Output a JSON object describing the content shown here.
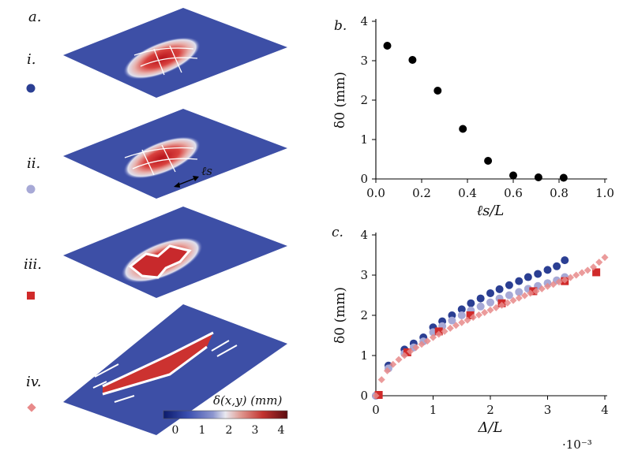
{
  "panels": {
    "a": {
      "label": "a.",
      "rows": [
        {
          "label": "i.",
          "marker": "circle",
          "color": "#2b3f93"
        },
        {
          "label": "ii.",
          "marker": "circle",
          "color": "#a7a9d6"
        },
        {
          "label": "iii.",
          "marker": "square",
          "color": "#d02a2a"
        },
        {
          "label": "iv.",
          "marker": "diamond",
          "color": "#e88a8a"
        }
      ],
      "ls_label": "ℓs",
      "colorbar": {
        "label": "δ(x,y) (mm)",
        "ticks": [
          "0",
          "1",
          "2",
          "3",
          "4"
        ]
      }
    },
    "b": {
      "label": "b."
    },
    "c": {
      "label": "c.",
      "x_exponent": "·10⁻³"
    }
  },
  "chart_data": [
    {
      "id": "b",
      "type": "scatter",
      "xlabel": "ℓs/L",
      "ylabel": "δ0 (mm)",
      "xlim": [
        0,
        1
      ],
      "ylim": [
        0,
        4
      ],
      "xticks": [
        "0.0",
        "0.2",
        "0.4",
        "0.6",
        "0.8",
        "1.0"
      ],
      "yticks": [
        "0",
        "1",
        "2",
        "3",
        "4"
      ],
      "series": [
        {
          "name": "δ0 vs ℓs/L",
          "color": "#000000",
          "x": [
            0.05,
            0.16,
            0.27,
            0.38,
            0.49,
            0.6,
            0.71,
            0.82
          ],
          "y": [
            3.38,
            3.02,
            2.24,
            1.27,
            0.46,
            0.09,
            0.04,
            0.03
          ]
        }
      ]
    },
    {
      "id": "c",
      "type": "scatter",
      "xlabel": "Δ/L",
      "ylabel": "δ0 (mm)",
      "xlim": [
        0,
        4
      ],
      "ylim": [
        0,
        4
      ],
      "xticks": [
        "0",
        "1",
        "2",
        "3",
        "4"
      ],
      "yticks": [
        "0",
        "1",
        "2",
        "3",
        "4"
      ],
      "series": [
        {
          "name": "i",
          "marker": "circle",
          "color": "#2b3f93",
          "x": [
            0,
            0.22,
            0.5,
            0.66,
            0.83,
            1.0,
            1.16,
            1.33,
            1.5,
            1.66,
            1.83,
            2.0,
            2.16,
            2.33,
            2.5,
            2.66,
            2.83,
            3.0,
            3.16,
            3.3
          ],
          "y": [
            0,
            0.75,
            1.15,
            1.3,
            1.45,
            1.7,
            1.85,
            2.0,
            2.15,
            2.3,
            2.42,
            2.55,
            2.65,
            2.75,
            2.85,
            2.95,
            3.03,
            3.13,
            3.22,
            3.37
          ]
        },
        {
          "name": "ii",
          "marker": "circle",
          "color": "#a7a9d6",
          "x": [
            0,
            0.22,
            0.5,
            0.66,
            0.83,
            1.0,
            1.16,
            1.33,
            1.5,
            1.66,
            1.83,
            2.0,
            2.16,
            2.33,
            2.5,
            2.66,
            2.83,
            3.0,
            3.16,
            3.3
          ],
          "y": [
            0,
            0.68,
            1.05,
            1.2,
            1.35,
            1.58,
            1.73,
            1.87,
            2.0,
            2.12,
            2.22,
            2.32,
            2.42,
            2.5,
            2.58,
            2.66,
            2.73,
            2.8,
            2.87,
            2.95
          ]
        },
        {
          "name": "iii",
          "marker": "square",
          "color": "#d02a2a",
          "x": [
            0.05,
            0.55,
            1.1,
            1.65,
            2.2,
            2.75,
            3.3,
            3.85
          ],
          "y": [
            0.02,
            1.08,
            1.6,
            2.0,
            2.3,
            2.6,
            2.85,
            3.07
          ]
        },
        {
          "name": "iv",
          "marker": "diamond",
          "color": "#e88a8a",
          "x": [
            0,
            0.1,
            0.2,
            0.3,
            0.4,
            0.5,
            0.6,
            0.7,
            0.8,
            0.9,
            1.0,
            1.1,
            1.2,
            1.3,
            1.4,
            1.5,
            1.6,
            1.7,
            1.8,
            1.9,
            2.0,
            2.1,
            2.2,
            2.3,
            2.4,
            2.5,
            2.6,
            2.7,
            2.8,
            2.9,
            3.0,
            3.1,
            3.2,
            3.3,
            3.4,
            3.5,
            3.6,
            3.7,
            3.8,
            3.9,
            4.0
          ],
          "y": [
            0,
            0.4,
            0.62,
            0.78,
            0.9,
            1.0,
            1.1,
            1.2,
            1.28,
            1.36,
            1.45,
            1.53,
            1.6,
            1.68,
            1.75,
            1.82,
            1.88,
            1.95,
            2.01,
            2.07,
            2.13,
            2.19,
            2.25,
            2.31,
            2.37,
            2.43,
            2.49,
            2.55,
            2.6,
            2.66,
            2.72,
            2.77,
            2.83,
            2.88,
            2.94,
            3.0,
            3.06,
            3.12,
            3.2,
            3.32,
            3.44
          ]
        }
      ]
    }
  ]
}
